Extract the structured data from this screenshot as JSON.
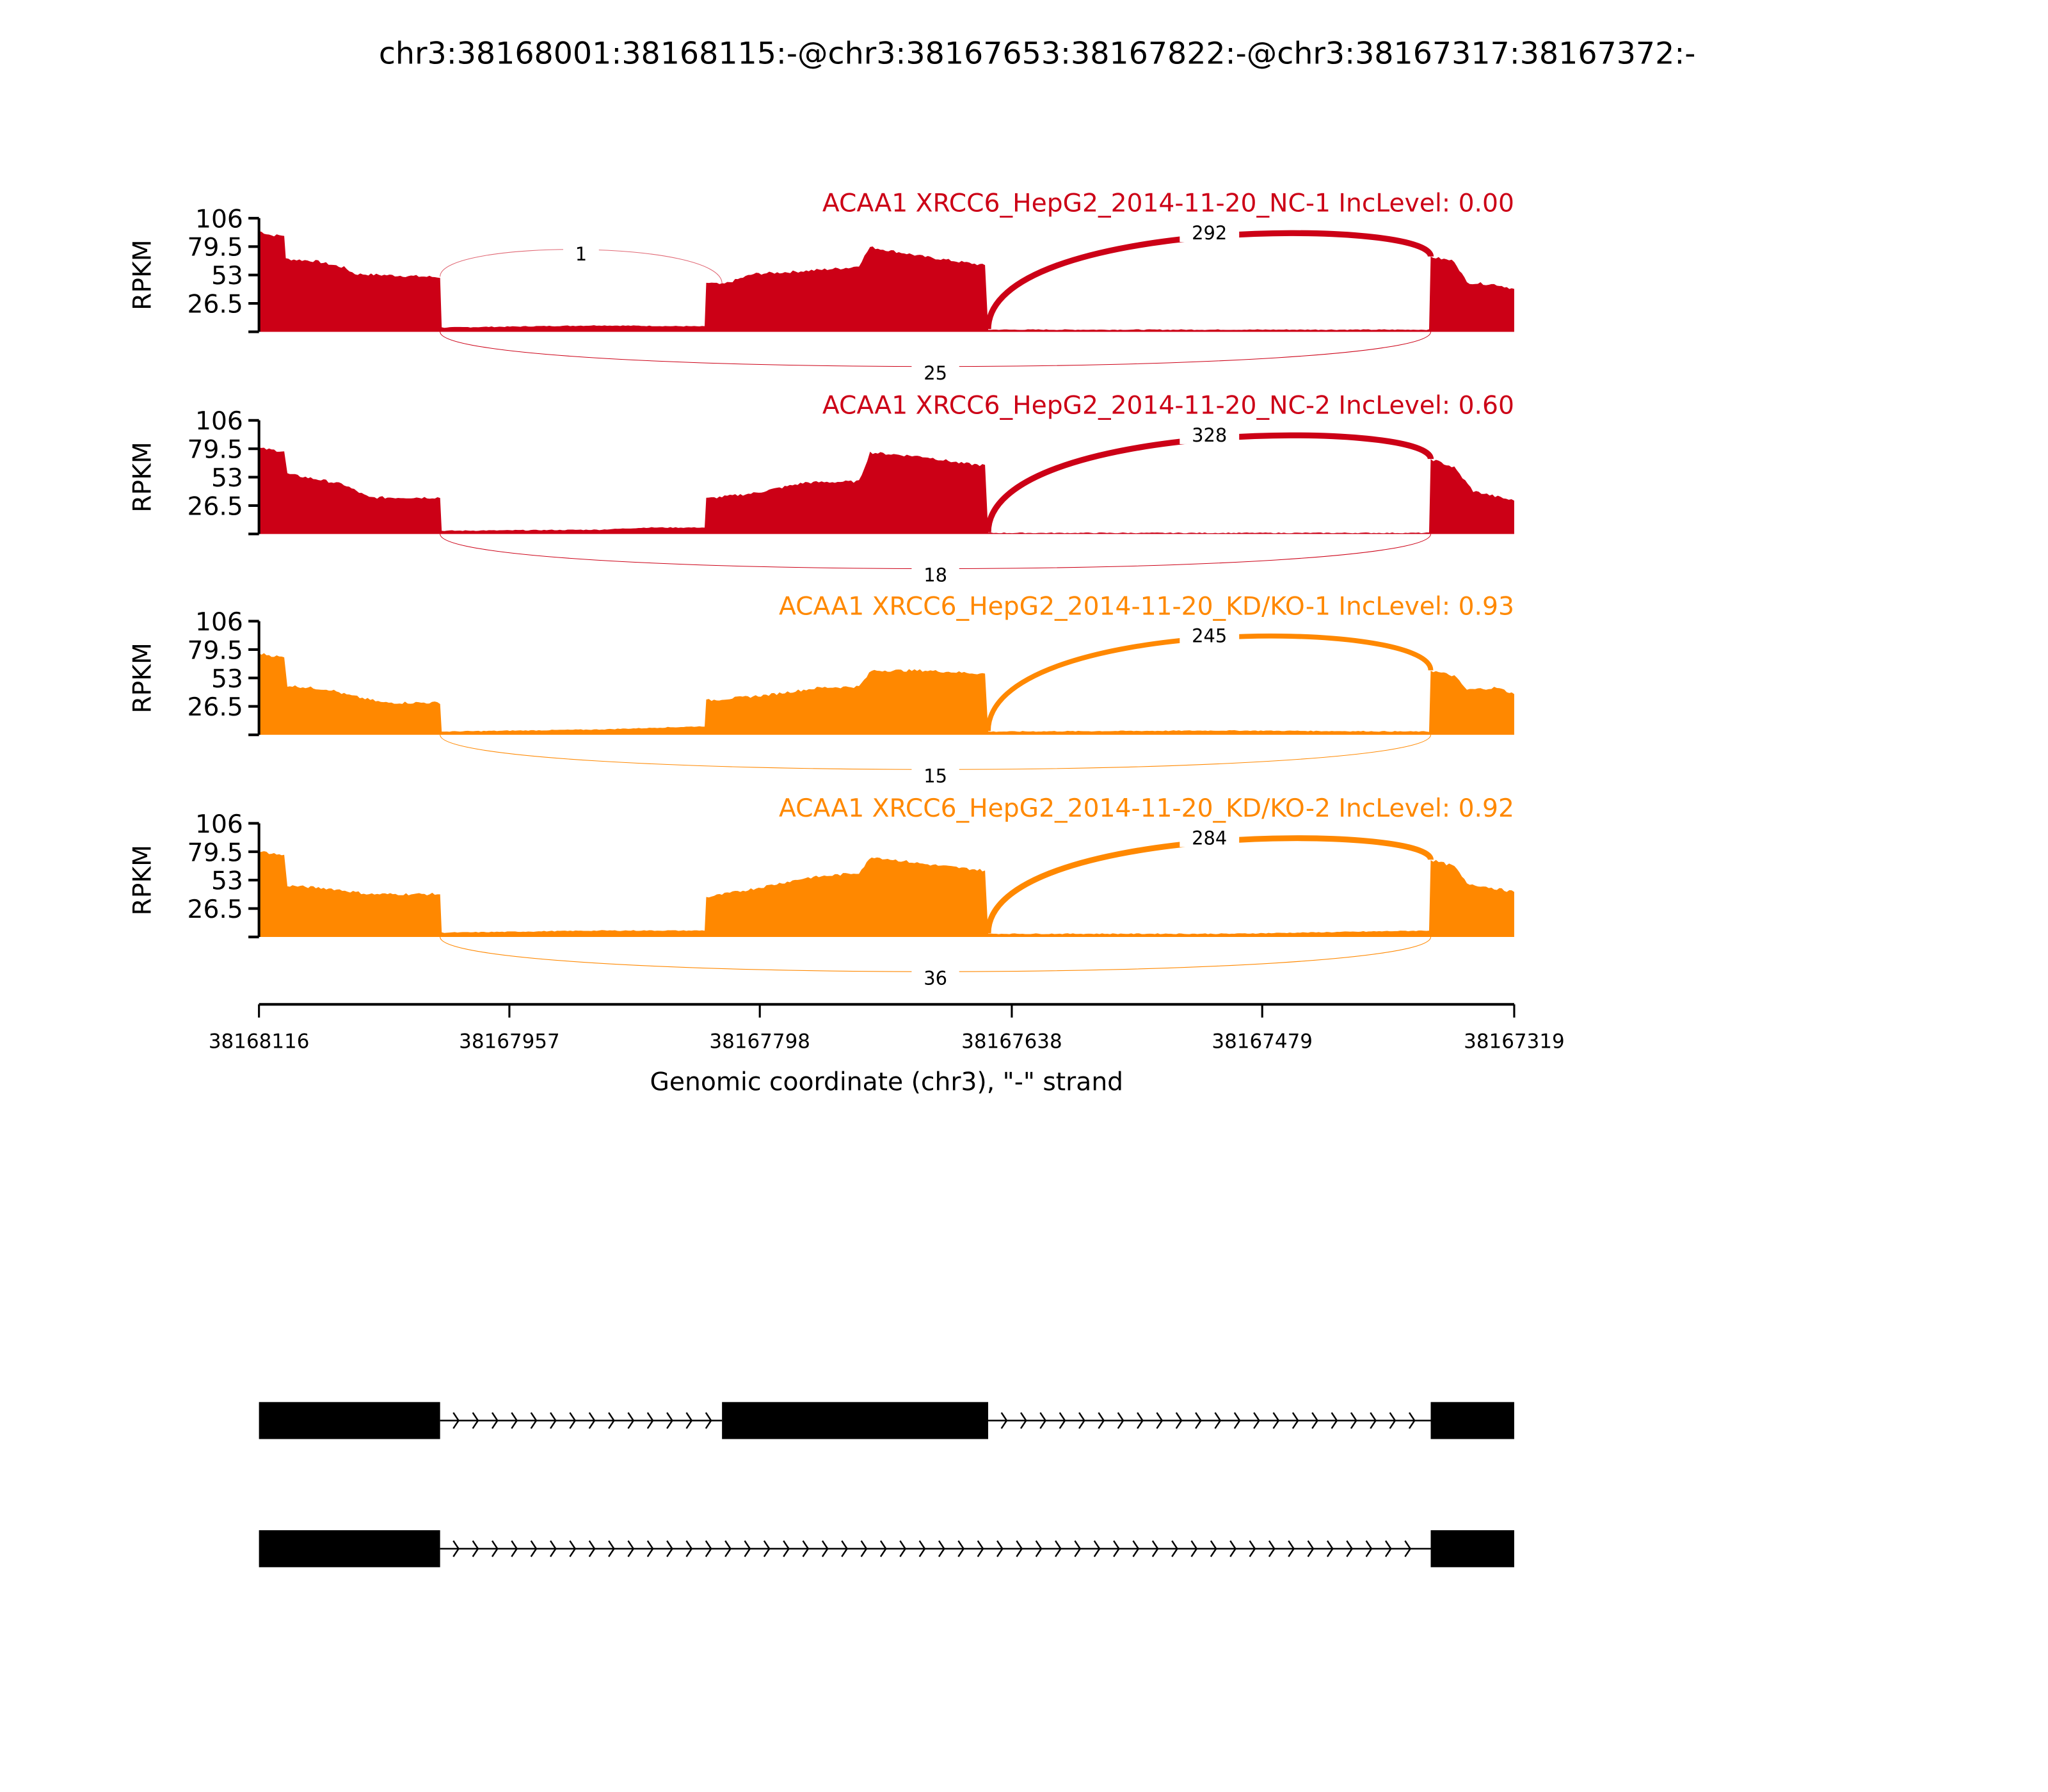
{
  "chart_data": {
    "type": "area",
    "title": "chr3:38168001:38168115:-@chr3:38167653:38167822:-@chr3:38167317:38167372:-",
    "xlabel": "Genomic coordinate (chr3), \"-\" strand",
    "ylabel": "RPKM",
    "xlim": [
      38168116,
      38167319
    ],
    "ylim": [
      0,
      106
    ],
    "x_ticks": [
      "38168116",
      "38167957",
      "38167798",
      "38167638",
      "38167479",
      "38167319"
    ],
    "x_tick_values": [
      38168116,
      38167957,
      38167798,
      38167638,
      38167479,
      38167319
    ],
    "y_ticks": [
      "106",
      "79.5",
      "53",
      "26.5"
    ],
    "y_tick_values": [
      106,
      79.5,
      53,
      26.5,
      0
    ],
    "colors": {
      "NC": "#cc0016",
      "KD": "#ff8800"
    },
    "panels": [
      {
        "label": "ACAA1 XRCC6_HepG2_2014-11-20_NC-1 IncLevel: 0.00",
        "group": "NC",
        "coverage": [
          [
            38168116,
            94
          ],
          [
            38168108,
            90
          ],
          [
            38168100,
            90
          ],
          [
            38168099,
            68
          ],
          [
            38168080,
            66
          ],
          [
            38168062,
            60
          ],
          [
            38168055,
            54
          ],
          [
            38168001,
            51
          ],
          [
            38168000,
            4
          ],
          [
            38167900,
            6
          ],
          [
            38167833,
            5
          ],
          [
            38167832,
            46
          ],
          [
            38167822,
            44
          ],
          [
            38167802,
            54
          ],
          [
            38167777,
            56
          ],
          [
            38167740,
            60
          ],
          [
            38167735,
            62
          ],
          [
            38167728,
            79
          ],
          [
            38167693,
            70
          ],
          [
            38167655,
            62
          ],
          [
            38167653,
            2
          ],
          [
            38167373,
            2
          ],
          [
            38167372,
            70
          ],
          [
            38167357,
            66
          ],
          [
            38167349,
            46
          ],
          [
            38167330,
            44
          ],
          [
            38167319,
            40
          ]
        ],
        "junctions": [
          {
            "start": 38168001,
            "end": 38167822,
            "count": "1",
            "side": "above"
          },
          {
            "start": 38167653,
            "end": 38167372,
            "count": "292",
            "side": "above"
          },
          {
            "start": 38168001,
            "end": 38167372,
            "count": "25",
            "side": "below"
          }
        ]
      },
      {
        "label": "ACAA1 XRCC6_HepG2_2014-11-20_NC-2 IncLevel: 0.60",
        "group": "NC",
        "coverage": [
          [
            38168116,
            80
          ],
          [
            38168100,
            77
          ],
          [
            38168098,
            56
          ],
          [
            38168075,
            50
          ],
          [
            38168062,
            46
          ],
          [
            38168046,
            34
          ],
          [
            38168001,
            34
          ],
          [
            38168000,
            3
          ],
          [
            38167900,
            4
          ],
          [
            38167870,
            6
          ],
          [
            38167833,
            6
          ],
          [
            38167832,
            33
          ],
          [
            38167802,
            38
          ],
          [
            38167769,
            48
          ],
          [
            38167735,
            49
          ],
          [
            38167728,
            76
          ],
          [
            38167693,
            72
          ],
          [
            38167670,
            66
          ],
          [
            38167655,
            64
          ],
          [
            38167653,
            1
          ],
          [
            38167373,
            1
          ],
          [
            38167372,
            70
          ],
          [
            38167357,
            62
          ],
          [
            38167345,
            40
          ],
          [
            38167319,
            31
          ]
        ],
        "junctions": [
          {
            "start": 38167653,
            "end": 38167372,
            "count": "328",
            "side": "above"
          },
          {
            "start": 38168001,
            "end": 38167372,
            "count": "18",
            "side": "below"
          }
        ]
      },
      {
        "label": "ACAA1 XRCC6_HepG2_2014-11-20_KD/KO-1 IncLevel: 0.93",
        "group": "KD",
        "coverage": [
          [
            38168116,
            76
          ],
          [
            38168100,
            72
          ],
          [
            38168098,
            46
          ],
          [
            38168070,
            42
          ],
          [
            38168062,
            38
          ],
          [
            38168037,
            30
          ],
          [
            38168001,
            30
          ],
          [
            38168000,
            3
          ],
          [
            38167900,
            5
          ],
          [
            38167833,
            8
          ],
          [
            38167832,
            32
          ],
          [
            38167794,
            37
          ],
          [
            38167760,
            44
          ],
          [
            38167735,
            45
          ],
          [
            38167727,
            60
          ],
          [
            38167693,
            60
          ],
          [
            38167655,
            57
          ],
          [
            38167653,
            3
          ],
          [
            38167500,
            4
          ],
          [
            38167373,
            3
          ],
          [
            38167372,
            60
          ],
          [
            38167357,
            55
          ],
          [
            38167349,
            42
          ],
          [
            38167330,
            44
          ],
          [
            38167319,
            38
          ]
        ],
        "junctions": [
          {
            "start": 38167653,
            "end": 38167372,
            "count": "245",
            "side": "above"
          },
          {
            "start": 38168001,
            "end": 38167372,
            "count": "15",
            "side": "below"
          }
        ]
      },
      {
        "label": "ACAA1 XRCC6_HepG2_2014-11-20_KD/KO-2 IncLevel: 0.92",
        "group": "KD",
        "coverage": [
          [
            38168116,
            80
          ],
          [
            38168100,
            76
          ],
          [
            38168098,
            48
          ],
          [
            38168070,
            45
          ],
          [
            38168046,
            40
          ],
          [
            38168001,
            40
          ],
          [
            38168000,
            4
          ],
          [
            38167900,
            6
          ],
          [
            38167833,
            6
          ],
          [
            38167832,
            37
          ],
          [
            38167802,
            45
          ],
          [
            38167769,
            55
          ],
          [
            38167735,
            60
          ],
          [
            38167727,
            75
          ],
          [
            38167693,
            68
          ],
          [
            38167655,
            62
          ],
          [
            38167653,
            3
          ],
          [
            38167500,
            3
          ],
          [
            38167373,
            6
          ],
          [
            38167372,
            72
          ],
          [
            38167357,
            66
          ],
          [
            38167349,
            50
          ],
          [
            38167330,
            45
          ],
          [
            38167319,
            42
          ]
        ],
        "junctions": [
          {
            "start": 38167653,
            "end": 38167372,
            "count": "284",
            "side": "above"
          },
          {
            "start": 38168001,
            "end": 38167372,
            "count": "36",
            "side": "below"
          }
        ]
      }
    ],
    "gene_models": [
      {
        "exons": [
          [
            38168116,
            38168001
          ],
          [
            38167822,
            38167653
          ],
          [
            38167372,
            38167319
          ]
        ]
      },
      {
        "exons": [
          [
            38168116,
            38168001
          ],
          [
            38167372,
            38167319
          ]
        ]
      }
    ]
  }
}
